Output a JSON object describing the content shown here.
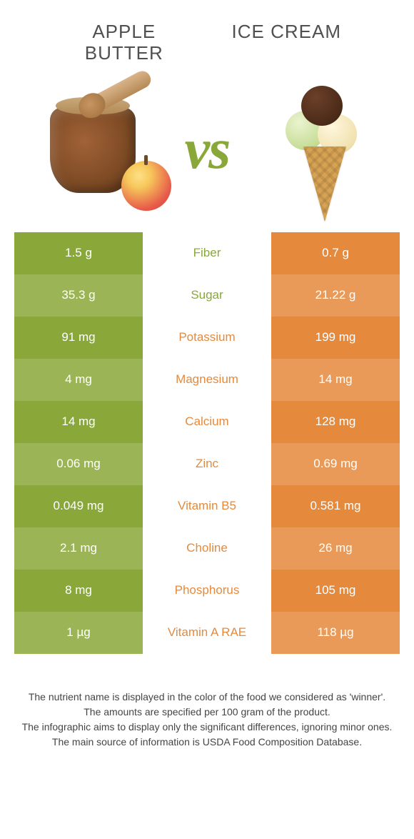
{
  "colors": {
    "left_food": "#8aa83a",
    "right_food": "#e58a3c",
    "left_alt": "#9bb556",
    "right_alt": "#e99a58",
    "vs": "#8aa83a",
    "nutrient_text_default": "#666666"
  },
  "header": {
    "left_title_line1": "Apple",
    "left_title_line2": "butter",
    "right_title": "Ice cream",
    "vs_label": "vs"
  },
  "rows": [
    {
      "nutrient": "Fiber",
      "left": "1.5 g",
      "right": "0.7 g",
      "winner": "left"
    },
    {
      "nutrient": "Sugar",
      "left": "35.3 g",
      "right": "21.22 g",
      "winner": "left"
    },
    {
      "nutrient": "Potassium",
      "left": "91 mg",
      "right": "199 mg",
      "winner": "right"
    },
    {
      "nutrient": "Magnesium",
      "left": "4 mg",
      "right": "14 mg",
      "winner": "right"
    },
    {
      "nutrient": "Calcium",
      "left": "14 mg",
      "right": "128 mg",
      "winner": "right"
    },
    {
      "nutrient": "Zinc",
      "left": "0.06 mg",
      "right": "0.69 mg",
      "winner": "right"
    },
    {
      "nutrient": "Vitamin B5",
      "left": "0.049 mg",
      "right": "0.581 mg",
      "winner": "right"
    },
    {
      "nutrient": "Choline",
      "left": "2.1 mg",
      "right": "26 mg",
      "winner": "right"
    },
    {
      "nutrient": "Phosphorus",
      "left": "8 mg",
      "right": "105 mg",
      "winner": "right"
    },
    {
      "nutrient": "Vitamin A RAE",
      "left": "1 µg",
      "right": "118 µg",
      "winner": "right"
    }
  ],
  "footnotes": [
    "The nutrient name is displayed in the color of the food we considered as 'winner'.",
    "The amounts are specified per 100 gram of the product.",
    "The infographic aims to display only the significant differences, ignoring minor ones.",
    "The main source of information is USDA Food Composition Database."
  ]
}
